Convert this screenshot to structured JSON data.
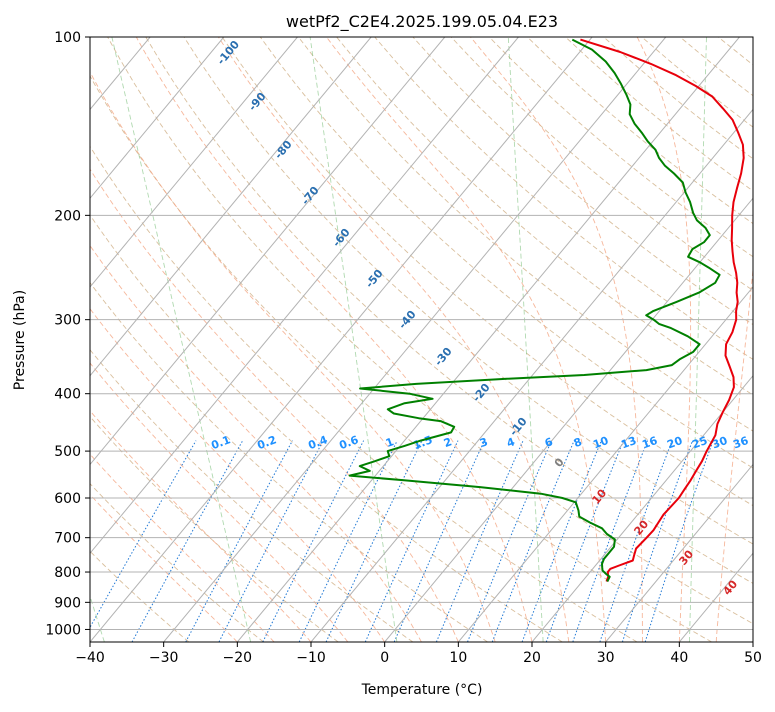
{
  "chart_data": {
    "type": "line",
    "title": "wetPf2_C2E4.2025.199.05.04.E23",
    "xlabel": "Temperature (°C)",
    "ylabel": "Pressure (hPa)",
    "xlim": [
      -40,
      50
    ],
    "ylim": [
      1050,
      100
    ],
    "y_scale": "log",
    "grid": true,
    "x_ticks": [
      "−40",
      "−30",
      "−20",
      "−10",
      "0",
      "10",
      "20",
      "30",
      "40",
      "50"
    ],
    "y_ticks": [
      "100",
      "200",
      "300",
      "400",
      "500",
      "600",
      "700",
      "800",
      "900",
      "1000"
    ],
    "series": [
      {
        "color": "#e8000b",
        "points": [
          [
            23.3,
            830
          ],
          [
            23.0,
            815
          ],
          [
            22.4,
            800
          ],
          [
            22.4,
            790
          ],
          [
            23.2,
            780
          ],
          [
            24.5,
            765
          ],
          [
            24.1,
            750
          ],
          [
            23.6,
            730
          ],
          [
            23.8,
            700
          ],
          [
            23.9,
            680
          ],
          [
            23.7,
            660
          ],
          [
            23.5,
            640
          ],
          [
            23.7,
            600
          ],
          [
            23.5,
            580
          ],
          [
            23.3,
            560
          ],
          [
            23.0,
            540
          ],
          [
            22.7,
            520
          ],
          [
            22.2,
            500
          ],
          [
            21.6,
            470
          ],
          [
            20.6,
            450
          ],
          [
            20.0,
            430
          ],
          [
            19.5,
            410
          ],
          [
            18.7,
            390
          ],
          [
            17.5,
            375
          ],
          [
            15.8,
            360
          ],
          [
            14.0,
            345
          ],
          [
            12.8,
            330
          ],
          [
            12.3,
            315
          ],
          [
            11.4,
            300
          ],
          [
            10.4,
            290
          ],
          [
            9.6,
            280
          ],
          [
            8.4,
            270
          ],
          [
            7.4,
            260
          ],
          [
            6.1,
            250
          ],
          [
            4.6,
            240
          ],
          [
            3.2,
            230
          ],
          [
            1.8,
            220
          ],
          [
            0.5,
            210
          ],
          [
            -0.9,
            200
          ],
          [
            -2.2,
            190
          ],
          [
            -3.3,
            180
          ],
          [
            -4.4,
            170
          ],
          [
            -5.8,
            160
          ],
          [
            -7.4,
            152
          ],
          [
            -9.4,
            145
          ],
          [
            -11.6,
            138
          ],
          [
            -14.2,
            132
          ],
          [
            -17.0,
            126
          ],
          [
            -20.4,
            121
          ],
          [
            -24.3,
            116
          ],
          [
            -29.0,
            111
          ],
          [
            -34.5,
            106
          ],
          [
            -41.3,
            101
          ]
        ]
      },
      {
        "color": "#008000",
        "points": [
          [
            23.4,
            830
          ],
          [
            23.2,
            815
          ],
          [
            22.3,
            805
          ],
          [
            21.5,
            795
          ],
          [
            21.1,
            785
          ],
          [
            20.7,
            775
          ],
          [
            20.4,
            760
          ],
          [
            20.4,
            740
          ],
          [
            20.4,
            725
          ],
          [
            19.7,
            705
          ],
          [
            18.0,
            690
          ],
          [
            16.7,
            675
          ],
          [
            14.4,
            660
          ],
          [
            12.3,
            645
          ],
          [
            11.5,
            630
          ],
          [
            10.2,
            610
          ],
          [
            7.9,
            600
          ],
          [
            4.5,
            590
          ],
          [
            -4.5,
            575
          ],
          [
            -15.6,
            560
          ],
          [
            -23.5,
            550
          ],
          [
            -21.3,
            540
          ],
          [
            -23.2,
            530
          ],
          [
            -21.7,
            520
          ],
          [
            -20.3,
            510
          ],
          [
            -21.1,
            500
          ],
          [
            -19.4,
            490
          ],
          [
            -17.8,
            480
          ],
          [
            -14.6,
            465
          ],
          [
            -14.8,
            455
          ],
          [
            -17.3,
            445
          ],
          [
            -20.6,
            440
          ],
          [
            -24.5,
            432
          ],
          [
            -25.8,
            425
          ],
          [
            -24.2,
            415
          ],
          [
            -20.9,
            408
          ],
          [
            -24.6,
            400
          ],
          [
            -31.9,
            392
          ],
          [
            -24.8,
            385
          ],
          [
            -13.9,
            378
          ],
          [
            -3.0,
            372
          ],
          [
            4.9,
            365
          ],
          [
            7.8,
            358
          ],
          [
            8.2,
            350
          ],
          [
            9.2,
            340
          ],
          [
            9.2,
            330
          ],
          [
            6.7,
            320
          ],
          [
            3.5,
            310
          ],
          [
            1.4,
            305
          ],
          [
            0.2,
            300
          ],
          [
            -1.3,
            295
          ],
          [
            -0.8,
            290
          ],
          [
            1.3,
            280
          ],
          [
            3.3,
            270
          ],
          [
            4.4,
            260
          ],
          [
            4.1,
            252
          ],
          [
            1.8,
            245
          ],
          [
            0.0,
            240
          ],
          [
            -2.2,
            235
          ],
          [
            -2.5,
            228
          ],
          [
            -1.7,
            222
          ],
          [
            -1.7,
            216
          ],
          [
            -3.1,
            210
          ],
          [
            -5.1,
            204
          ],
          [
            -6.5,
            198
          ],
          [
            -8.1,
            190
          ],
          [
            -9.8,
            183
          ],
          [
            -11.3,
            176
          ],
          [
            -13.5,
            170
          ],
          [
            -15.6,
            165
          ],
          [
            -17.3,
            160
          ],
          [
            -18.7,
            155
          ],
          [
            -20.7,
            150
          ],
          [
            -22.5,
            145
          ],
          [
            -24.5,
            140
          ],
          [
            -26.2,
            135
          ],
          [
            -27.2,
            130
          ],
          [
            -28.9,
            125
          ],
          [
            -30.8,
            120
          ],
          [
            -32.9,
            115
          ],
          [
            -35.4,
            110
          ],
          [
            -38.6,
            105
          ],
          [
            -42.4,
            101
          ]
        ]
      }
    ],
    "dry_adiabat_labels": [
      "-100",
      "-90",
      "-80",
      "-70",
      "-60",
      "-50",
      "-40",
      "-30",
      "-20",
      "-10",
      "0",
      "10",
      "20",
      "30",
      "40"
    ],
    "mixing_ratio_labels": [
      "0.1",
      "0.2",
      "0.4",
      "0.6",
      "1",
      "1.5",
      "2",
      "3",
      "4",
      "6",
      "8",
      "10",
      "13",
      "16",
      "20",
      "25",
      "30",
      "36"
    ]
  }
}
